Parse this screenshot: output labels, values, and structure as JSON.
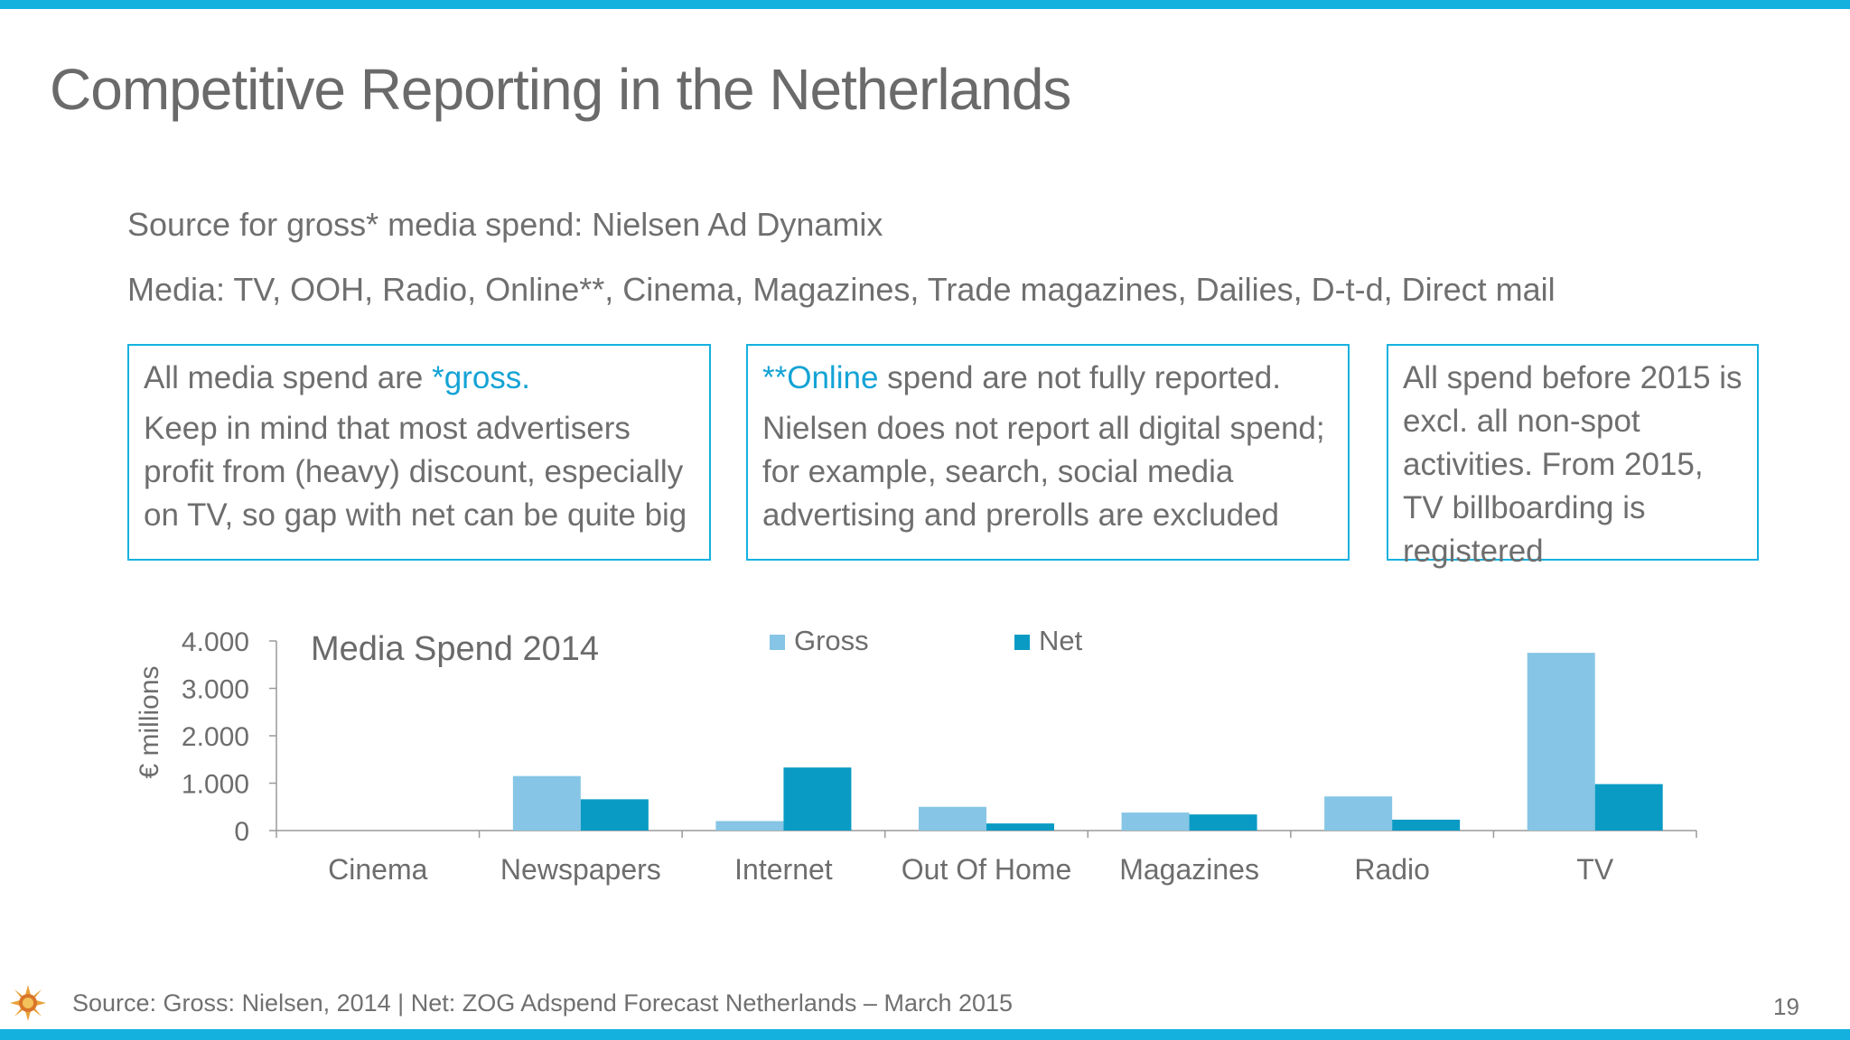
{
  "slide": {
    "title": "Competitive Reporting in the Netherlands",
    "line1": "Source for gross* media spend: Nielsen Ad Dynamix",
    "line2": "Media: TV, OOH, Radio, Online**, Cinema, Magazines, Trade magazines, Dailies, D-t-d, Direct mail",
    "page_number": "19",
    "footer_source": "Source: Gross: Nielsen, 2014 | Net: ZOG Adspend Forecast Netherlands – March 2015"
  },
  "boxes": {
    "box1": {
      "lead": "All media spend are ",
      "highlight": "*gross.",
      "body": "Keep in mind that most advertisers profit from (heavy) discount, especially on TV, so gap with net can be quite big"
    },
    "box2": {
      "highlight": "**Online",
      "lead": " spend are not fully reported.",
      "body": "Nielsen does not report all digital spend; for example, search, social media advertising and prerolls are excluded"
    },
    "box3": {
      "body": "All spend before 2015 is excl. all non-spot activities. From 2015, TV billboarding is registered"
    }
  },
  "colors": {
    "accent": "#14b1df",
    "gross": "#86c5e5",
    "net": "#0a9bc4"
  },
  "chart_data": {
    "type": "bar",
    "title": "Media Spend 2014",
    "ylabel": "€ millions",
    "xlabel": "",
    "categories": [
      "Cinema",
      "Newspapers",
      "Internet",
      "Out Of Home",
      "Magazines",
      "Radio",
      "TV"
    ],
    "series": [
      {
        "name": "Gross",
        "values": [
          0,
          1150,
          200,
          500,
          380,
          720,
          3750
        ]
      },
      {
        "name": "Net",
        "values": [
          0,
          660,
          1330,
          150,
          340,
          230,
          980
        ]
      }
    ],
    "ylim": [
      0,
      4000
    ],
    "yticks": [
      0,
      1000,
      2000,
      3000,
      4000
    ],
    "ytick_labels": [
      "0",
      "1.000",
      "2.000",
      "3.000",
      "4.000"
    ],
    "legend": "top-center",
    "grid": false
  }
}
